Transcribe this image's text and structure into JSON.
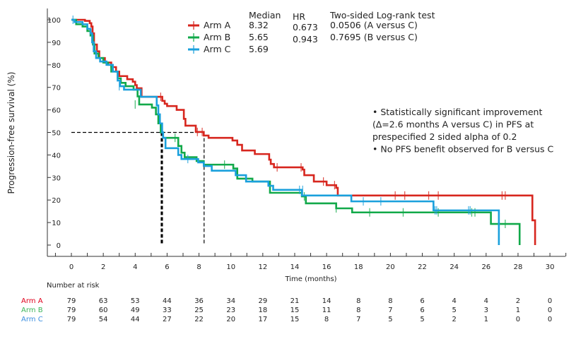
{
  "chart_data": {
    "type": "line",
    "subtype": "kaplan-meier step",
    "xlabel": "Time (months)",
    "ylabel": "Progression-free survival (%)",
    "xlim": [
      -1.5,
      31
    ],
    "ylim": [
      -5,
      103
    ],
    "xticks": [
      0,
      2,
      4,
      6,
      8,
      10,
      12,
      14,
      16,
      18,
      20,
      22,
      24,
      26,
      28,
      30
    ],
    "yticks": [
      0,
      10,
      20,
      30,
      40,
      50,
      60,
      70,
      80,
      90,
      100
    ],
    "grid": false,
    "legend": {
      "placement": "top-center",
      "headers": [
        "Median",
        "HR",
        "Two-sided Log-rank test"
      ],
      "rows": [
        {
          "name": "Arm A",
          "median": "8.32",
          "hr": "0.673",
          "test": "0.0506 (A versus C)"
        },
        {
          "name": "Arm B",
          "median": "5.65",
          "hr": "0.943",
          "test": "0.7695 (B versus C)"
        },
        {
          "name": "Arm C",
          "median": "5.69",
          "hr": "",
          "test": ""
        }
      ]
    },
    "series": [
      {
        "name": "Arm A",
        "color": "#d7261e",
        "steps": [
          [
            0,
            100
          ],
          [
            0.85,
            99.5
          ],
          [
            1.15,
            98.5
          ],
          [
            1.25,
            97
          ],
          [
            1.33,
            94
          ],
          [
            1.42,
            89
          ],
          [
            1.6,
            86
          ],
          [
            1.75,
            83
          ],
          [
            2.1,
            81
          ],
          [
            2.5,
            79
          ],
          [
            2.8,
            77
          ],
          [
            3.0,
            75
          ],
          [
            3.5,
            73.6
          ],
          [
            3.85,
            72.5
          ],
          [
            4.0,
            71
          ],
          [
            4.1,
            69.6
          ],
          [
            4.4,
            65.8
          ],
          [
            5.7,
            64
          ],
          [
            5.85,
            62.7
          ],
          [
            6.0,
            61.7
          ],
          [
            6.6,
            60
          ],
          [
            7.05,
            56
          ],
          [
            7.15,
            53
          ],
          [
            7.8,
            50.2
          ],
          [
            8.3,
            48.6
          ],
          [
            8.6,
            47.6
          ],
          [
            10.1,
            46.4
          ],
          [
            10.4,
            44.5
          ],
          [
            10.7,
            42
          ],
          [
            11.5,
            40.4
          ],
          [
            12.4,
            37.9
          ],
          [
            12.5,
            36
          ],
          [
            12.7,
            34.5
          ],
          [
            14.5,
            33.5
          ],
          [
            14.6,
            31
          ],
          [
            15.2,
            28.2
          ],
          [
            16.0,
            26.6
          ],
          [
            16.6,
            25.4
          ],
          [
            16.7,
            22
          ],
          [
            28.9,
            11
          ],
          [
            29.07,
            0
          ]
        ],
        "censored": [
          [
            5.6,
            65.8
          ],
          [
            7.9,
            50.2
          ],
          [
            8.2,
            50.2
          ],
          [
            12.9,
            34.5
          ],
          [
            14.4,
            34.5
          ],
          [
            15.8,
            28.2
          ],
          [
            16.5,
            26.6
          ],
          [
            20.3,
            22
          ],
          [
            20.9,
            22
          ],
          [
            22.4,
            22
          ],
          [
            23.0,
            22
          ],
          [
            27.0,
            22
          ],
          [
            27.2,
            22
          ]
        ]
      },
      {
        "name": "Arm B",
        "color": "#12a94a",
        "steps": [
          [
            0,
            100
          ],
          [
            0.3,
            98
          ],
          [
            0.7,
            97
          ],
          [
            1.0,
            95
          ],
          [
            1.2,
            93
          ],
          [
            1.35,
            89
          ],
          [
            1.45,
            85
          ],
          [
            1.7,
            83
          ],
          [
            2.0,
            81
          ],
          [
            2.3,
            80
          ],
          [
            2.5,
            77
          ],
          [
            2.9,
            74
          ],
          [
            3.1,
            72
          ],
          [
            3.4,
            70.5
          ],
          [
            3.9,
            69
          ],
          [
            4.15,
            66
          ],
          [
            4.25,
            62.4
          ],
          [
            5.05,
            61
          ],
          [
            5.3,
            58
          ],
          [
            5.45,
            54
          ],
          [
            5.6,
            50
          ],
          [
            5.75,
            47.6
          ],
          [
            6.7,
            44
          ],
          [
            6.9,
            41
          ],
          [
            7.1,
            39
          ],
          [
            7.85,
            37.3
          ],
          [
            8.3,
            35.7
          ],
          [
            10.15,
            34
          ],
          [
            10.4,
            29.5
          ],
          [
            11.35,
            28.2
          ],
          [
            12.45,
            23.2
          ],
          [
            14.45,
            21.6
          ],
          [
            14.7,
            18.5
          ],
          [
            16.6,
            16.3
          ],
          [
            17.6,
            14.5
          ],
          [
            26.3,
            9.4
          ],
          [
            28.1,
            0
          ]
        ],
        "censored": [
          [
            4.0,
            62.4
          ],
          [
            6.5,
            47.6
          ],
          [
            9.6,
            35.7
          ],
          [
            14.6,
            21.6
          ],
          [
            16.6,
            16.3
          ],
          [
            18.7,
            14.5
          ],
          [
            20.8,
            14.5
          ],
          [
            23.0,
            14.5
          ],
          [
            25.1,
            14.5
          ],
          [
            25.3,
            14.5
          ],
          [
            27.2,
            9.4
          ]
        ]
      },
      {
        "name": "Arm C",
        "color": "#1aa0dc",
        "steps": [
          [
            0,
            100
          ],
          [
            0.2,
            99
          ],
          [
            0.7,
            98
          ],
          [
            1.0,
            96
          ],
          [
            1.2,
            94
          ],
          [
            1.3,
            90
          ],
          [
            1.4,
            86
          ],
          [
            1.55,
            83
          ],
          [
            1.8,
            81.5
          ],
          [
            2.2,
            80
          ],
          [
            2.6,
            77
          ],
          [
            2.9,
            73
          ],
          [
            3.05,
            70.5
          ],
          [
            3.3,
            69
          ],
          [
            4.35,
            65.8
          ],
          [
            5.35,
            62
          ],
          [
            5.45,
            58
          ],
          [
            5.55,
            54
          ],
          [
            5.69,
            50
          ],
          [
            5.75,
            47.6
          ],
          [
            5.9,
            43
          ],
          [
            6.7,
            40
          ],
          [
            6.9,
            38.2
          ],
          [
            7.95,
            36.7
          ],
          [
            8.3,
            35.1
          ],
          [
            8.8,
            33
          ],
          [
            10.3,
            31
          ],
          [
            10.95,
            28.2
          ],
          [
            12.35,
            26.3
          ],
          [
            12.65,
            24.5
          ],
          [
            14.45,
            22
          ],
          [
            17.55,
            19.4
          ],
          [
            22.7,
            15.4
          ],
          [
            26.8,
            0
          ]
        ],
        "censored": [
          [
            0.1,
            100
          ],
          [
            3.0,
            70.5
          ],
          [
            7.3,
            38.2
          ],
          [
            14.3,
            24.5
          ],
          [
            14.5,
            24.5
          ],
          [
            18.3,
            19.4
          ],
          [
            19.4,
            19.4
          ],
          [
            22.8,
            15.4
          ],
          [
            22.9,
            15.4
          ],
          [
            24.9,
            15.4
          ],
          [
            25.0,
            15.4
          ]
        ]
      }
    ],
    "reference_lines": {
      "survival": 50,
      "medians": [
        5.65,
        5.69,
        8.32
      ]
    },
    "annotation": [
      "• Statistically significant improvement",
      "(∆=2.6 months A versus C) in PFS at",
      "prespecified 2 sided alpha of 0.2",
      "• No PFS benefit observed for B versus C"
    ],
    "risk_table": {
      "title": "Number at risk",
      "times": [
        0,
        2,
        4,
        6,
        8,
        10,
        12,
        14,
        16,
        18,
        20,
        22,
        24,
        26,
        28,
        30
      ],
      "rows": [
        {
          "name": "Arm A",
          "color": "#e0001b",
          "values": [
            "79",
            "63",
            "53",
            "44",
            "36",
            "34",
            "29",
            "21",
            "14",
            "8",
            "8",
            "6",
            "4",
            "4",
            "2",
            "0"
          ]
        },
        {
          "name": "Arm B",
          "color": "#3cb55a",
          "values": [
            "79",
            "60",
            "49",
            "33",
            "25",
            "23",
            "18",
            "15",
            "11",
            "8",
            "7",
            "6",
            "5",
            "3",
            "1",
            "0"
          ]
        },
        {
          "name": "Arm C",
          "color": "#3d8fe0",
          "values": [
            "79",
            "54",
            "44",
            "27",
            "22",
            "20",
            "17",
            "15",
            "8",
            "7",
            "5",
            "5",
            "2",
            "1",
            "0",
            "0"
          ]
        }
      ]
    }
  }
}
